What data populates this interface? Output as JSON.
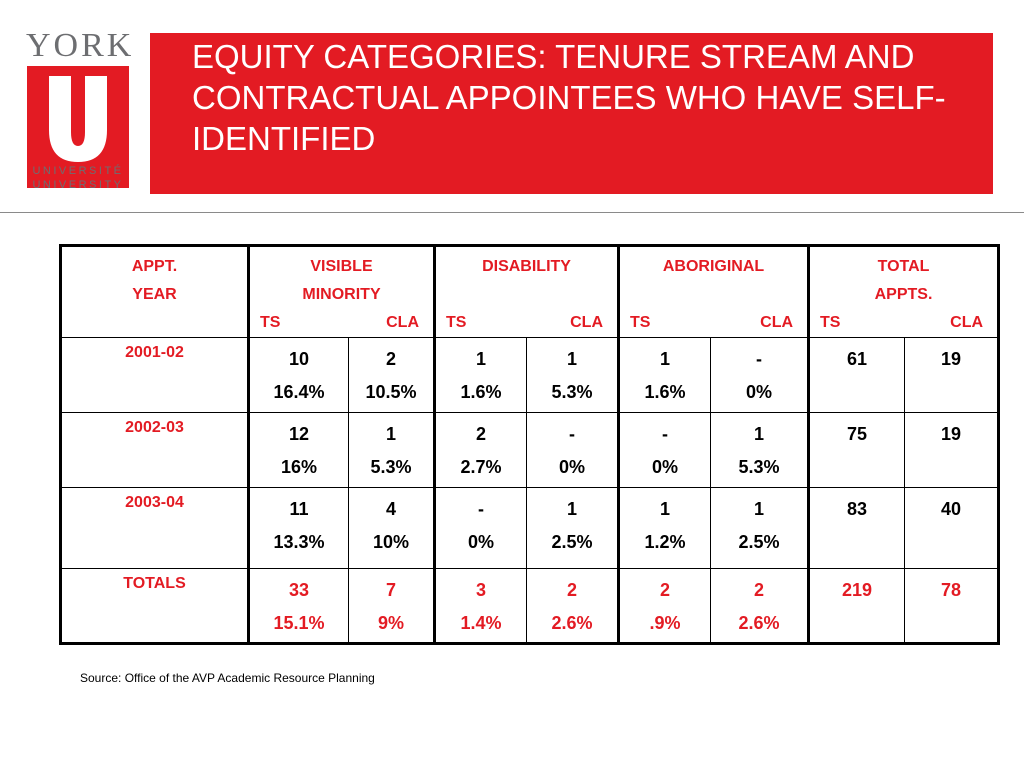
{
  "logo": {
    "york": "YORK",
    "univ_fr": "UNIVERSITÉ",
    "univ_en": "UNIVERSITY",
    "brand_red": "#e31b23"
  },
  "header": {
    "title": "EQUITY CATEGORIES: TENURE STREAM AND CONTRACTUAL APPOINTEES WHO HAVE SELF-IDENTIFIED"
  },
  "table": {
    "headers": {
      "year": [
        "APPT.",
        "YEAR"
      ],
      "visible_minority": [
        "VISIBLE",
        "MINORITY"
      ],
      "disability": [
        "DISABILITY"
      ],
      "aboriginal": [
        "ABORIGINAL"
      ],
      "total": [
        "TOTAL",
        "APPTS."
      ],
      "ts": "TS",
      "cla": "CLA"
    },
    "rows": [
      {
        "year": "2001-02",
        "vm_ts": [
          "10",
          "16.4%"
        ],
        "vm_cla": [
          "2",
          "10.5%"
        ],
        "dis_ts": [
          "1",
          "1.6%"
        ],
        "dis_cla": [
          "1",
          "5.3%"
        ],
        "abo_ts": [
          "1",
          "1.6%"
        ],
        "abo_cla": [
          "-",
          "0%"
        ],
        "tot_ts": "61",
        "tot_cla": "19"
      },
      {
        "year": "2002-03",
        "vm_ts": [
          "12",
          "16%"
        ],
        "vm_cla": [
          "1",
          "5.3%"
        ],
        "dis_ts": [
          "2",
          "2.7%"
        ],
        "dis_cla": [
          "-",
          "0%"
        ],
        "abo_ts": [
          "-",
          "0%"
        ],
        "abo_cla": [
          "1",
          "5.3%"
        ],
        "tot_ts": "75",
        "tot_cla": "19"
      },
      {
        "year": "2003-04",
        "vm_ts": [
          "11",
          "13.3%"
        ],
        "vm_cla": [
          "4",
          "10%"
        ],
        "dis_ts": [
          "-",
          "0%"
        ],
        "dis_cla": [
          "1",
          "2.5%"
        ],
        "abo_ts": [
          "1",
          "1.2%"
        ],
        "abo_cla": [
          "1",
          "2.5%"
        ],
        "tot_ts": "83",
        "tot_cla": "40"
      }
    ],
    "totals": {
      "year": "TOTALS",
      "vm_ts": [
        "33",
        "15.1%"
      ],
      "vm_cla": [
        "7",
        "9%"
      ],
      "dis_ts": [
        "3",
        "1.4%"
      ],
      "dis_cla": [
        "2",
        "2.6%"
      ],
      "abo_ts": [
        "2",
        ".9%"
      ],
      "abo_cla": [
        "2",
        "2.6%"
      ],
      "tot_ts": "219",
      "tot_cla": "78"
    }
  },
  "source": "Source:  Office of the AVP Academic Resource Planning"
}
